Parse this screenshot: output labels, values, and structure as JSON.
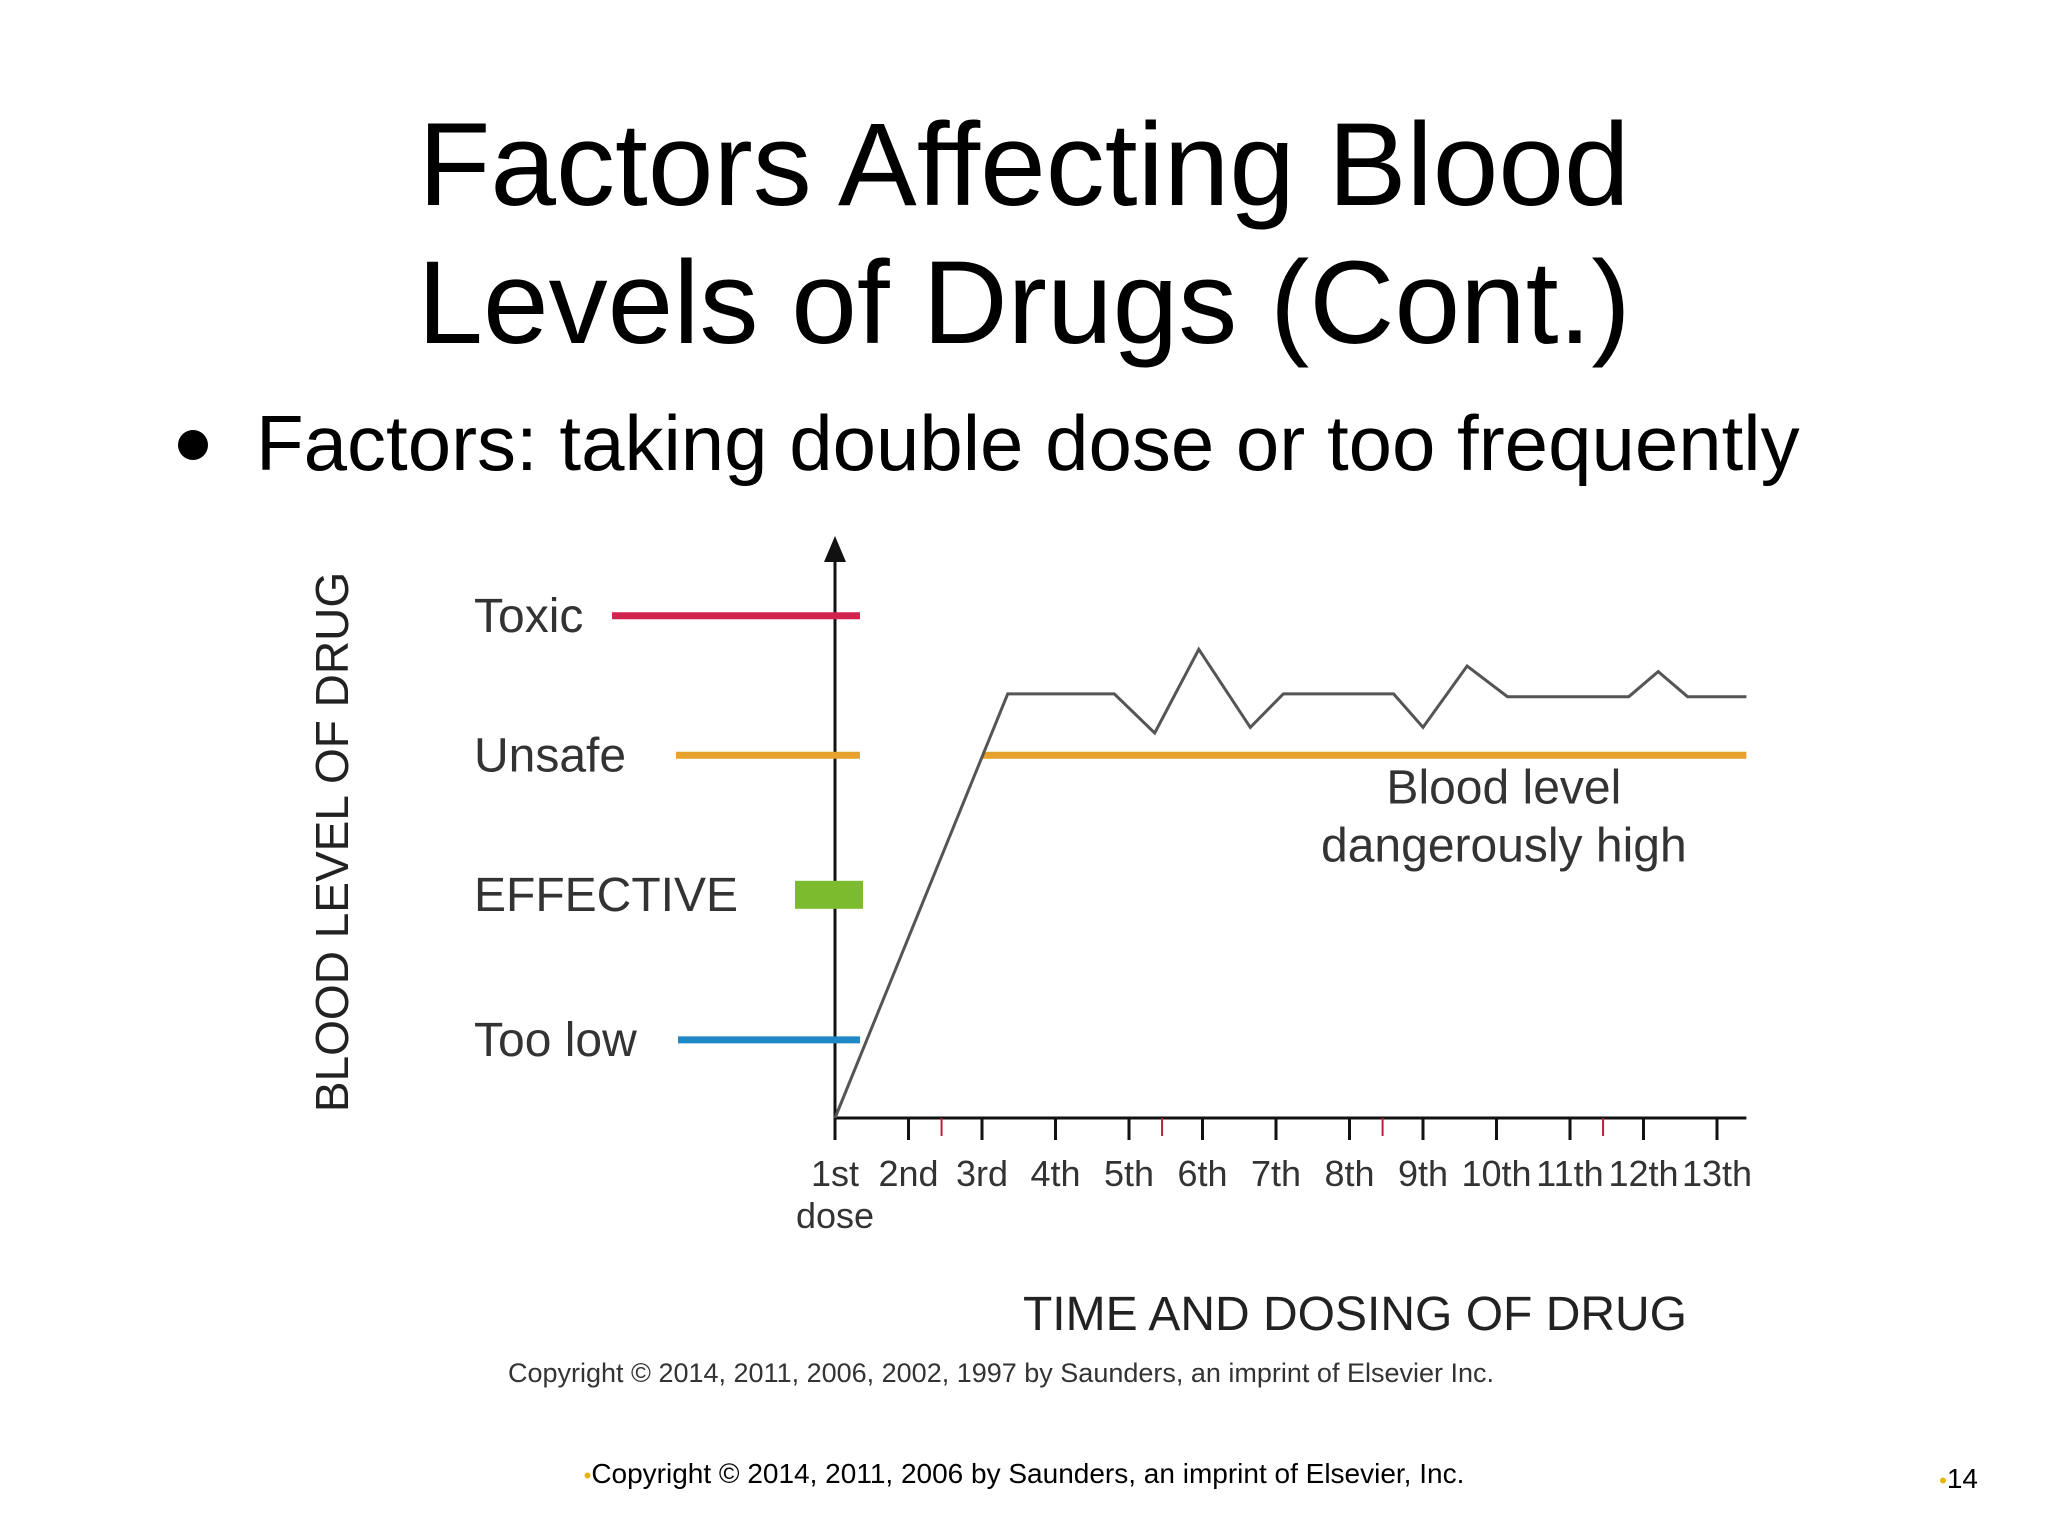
{
  "slide": {
    "title_line1": "Factors Affecting Blood",
    "title_line2": "Levels of Drugs (Cont.)",
    "bullet": "Factors: taking double dose or too frequently",
    "footer_copyright": "Copyright © 2014, 2011, 2006 by Saunders, an imprint of Elsevier, Inc.",
    "page_number": "14",
    "footer_bullet_color": "#e8b400"
  },
  "chart_data": {
    "type": "line",
    "title": "",
    "ylabel": "BLOOD LEVEL OF DRUG",
    "xlabel": "TIME AND DOSING OF DRUG",
    "x_tick_labels": [
      "1st",
      "2nd",
      "3rd",
      "4th",
      "5th",
      "6th",
      "7th",
      "8th",
      "9th",
      "10th",
      "11th",
      "12th",
      "13th"
    ],
    "first_tick_sublabel": "dose",
    "xlim": [
      1,
      13.4
    ],
    "ylim": [
      0,
      100
    ],
    "levels": [
      {
        "label": "Toxic",
        "y": 90,
        "color": "#d2234e",
        "style": "line"
      },
      {
        "label": "Unsafe",
        "y": 65,
        "color": "#e6a12f",
        "style": "line"
      },
      {
        "label": "EFFECTIVE",
        "y": 40,
        "color": "#7dbb2e",
        "style": "block"
      },
      {
        "label": "Too low",
        "y": 14,
        "color": "#1f88c6",
        "style": "line"
      }
    ],
    "unsafe_threshold": {
      "from_x": 3.0,
      "to_x": 13.4,
      "y": 65,
      "color": "#e6a12f"
    },
    "series": [
      {
        "color": "#555555",
        "points": [
          [
            1.0,
            0
          ],
          [
            3.35,
            76
          ],
          [
            4.8,
            76
          ],
          [
            5.35,
            69
          ],
          [
            5.95,
            84
          ],
          [
            6.65,
            70
          ],
          [
            7.1,
            76
          ],
          [
            8.6,
            76
          ],
          [
            9.0,
            70
          ],
          [
            9.6,
            81
          ],
          [
            10.15,
            75.5
          ],
          [
            11.8,
            75.5
          ],
          [
            12.2,
            80
          ],
          [
            12.6,
            75.5
          ],
          [
            13.4,
            75.5
          ]
        ]
      }
    ],
    "annotation": {
      "line1": "Blood level",
      "line2": "dangerously high",
      "x": 10.1,
      "y": 51
    },
    "image_copyright": "Copyright © 2014, 2011, 2006, 2002, 1997 by Saunders, an imprint of Elsevier Inc.",
    "grid": false,
    "legend": "none"
  }
}
